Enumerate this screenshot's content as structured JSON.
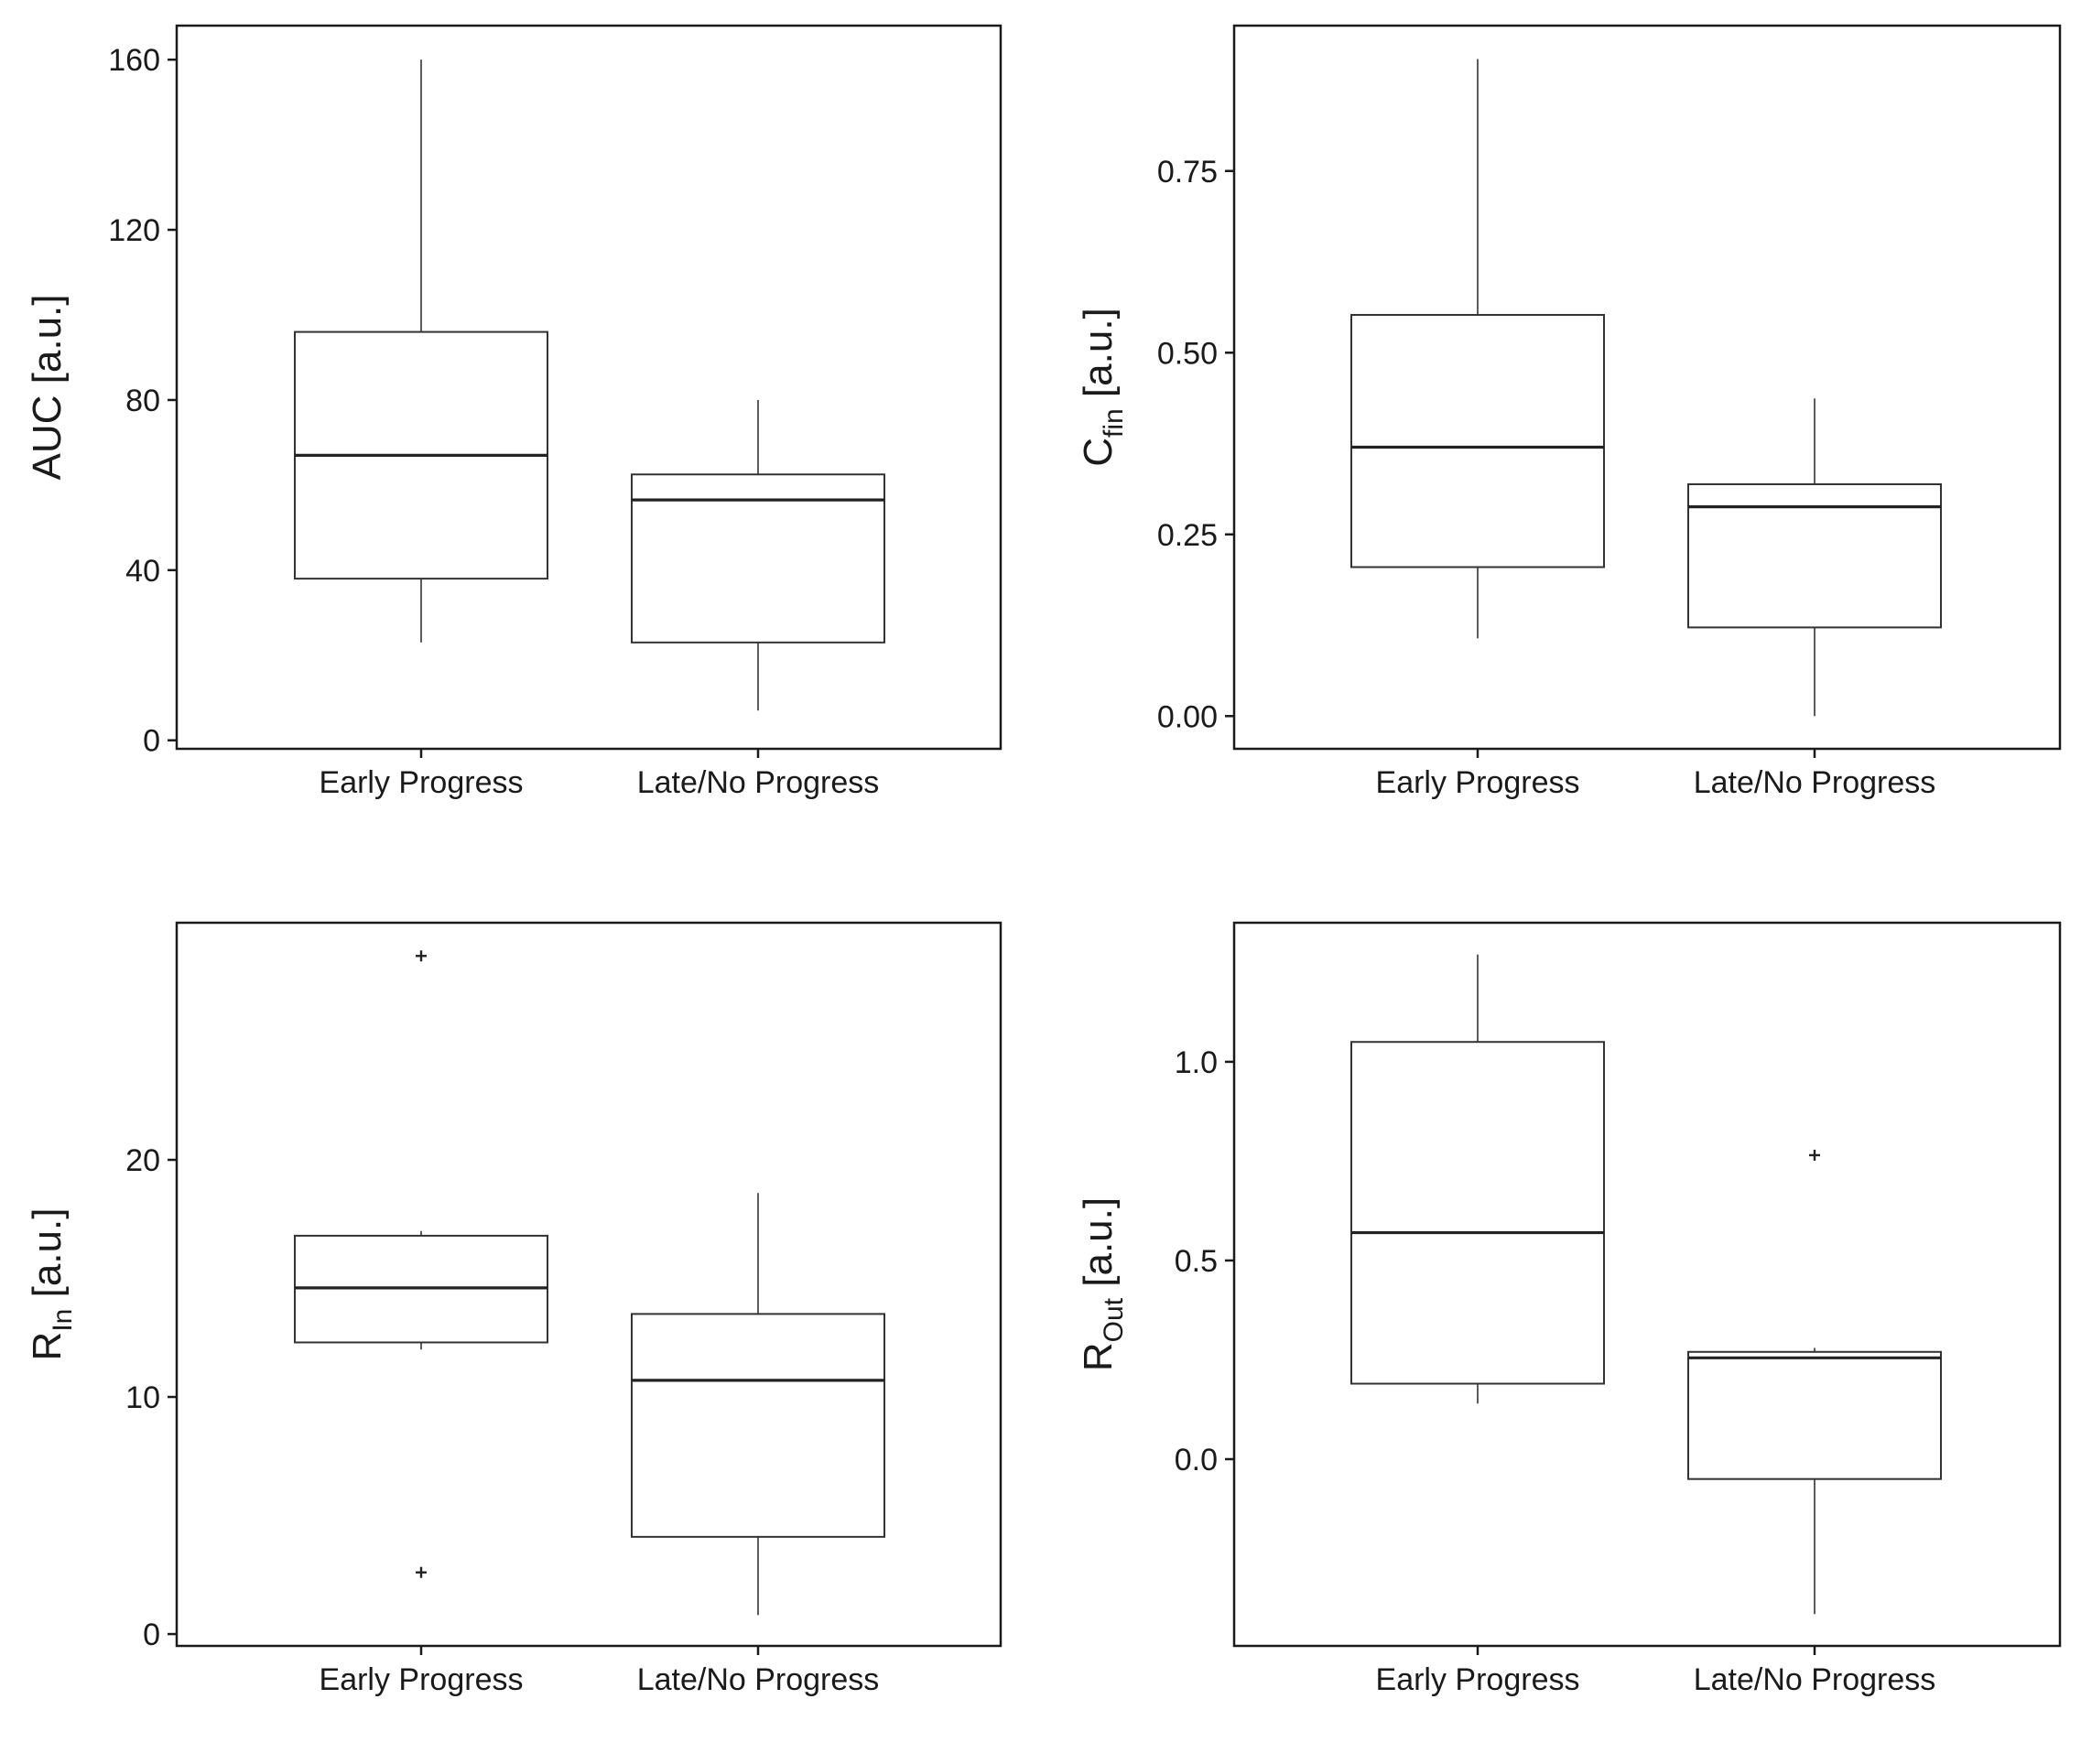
{
  "chart_data": [
    {
      "type": "box",
      "ylabel": {
        "main": "AUC",
        "sub": "",
        "unit": "[a.u.]"
      },
      "ylim": [
        -2,
        168
      ],
      "yticks": [
        "0",
        "40",
        "80",
        "120",
        "160"
      ],
      "categories": [
        "Early Progress",
        "Late/No Progress"
      ],
      "boxes": [
        {
          "whisker_low": 23,
          "q1": 38,
          "median": 67,
          "q3": 96,
          "whisker_high": 160,
          "outliers": []
        },
        {
          "whisker_low": 7,
          "q1": 23,
          "median": 56.5,
          "q3": 62.5,
          "whisker_high": 80,
          "outliers": []
        }
      ]
    },
    {
      "type": "box",
      "ylabel": {
        "main": "C",
        "sub": "fin",
        "unit": "[a.u.]"
      },
      "ylim": [
        -0.045,
        0.95
      ],
      "yticks": [
        "0.00",
        "0.25",
        "0.50",
        "0.75"
      ],
      "categories": [
        "Early Progress",
        "Late/No Progress"
      ],
      "boxes": [
        {
          "whisker_low": 0.107,
          "q1": 0.205,
          "median": 0.37,
          "q3": 0.552,
          "whisker_high": 0.904,
          "outliers": []
        },
        {
          "whisker_low": 0.0,
          "q1": 0.122,
          "median": 0.288,
          "q3": 0.319,
          "whisker_high": 0.437,
          "outliers": []
        }
      ]
    },
    {
      "type": "box",
      "ylabel": {
        "main": "R",
        "sub": "In",
        "unit": "[a.u.]"
      },
      "ylim": [
        -0.5,
        30
      ],
      "yticks": [
        "0",
        "10",
        "20"
      ],
      "categories": [
        "Early Progress",
        "Late/No Progress"
      ],
      "boxes": [
        {
          "whisker_low": 12.0,
          "q1": 12.3,
          "median": 14.6,
          "q3": 16.8,
          "whisker_high": 17.0,
          "outliers": [
            2.6,
            28.6
          ]
        },
        {
          "whisker_low": 0.8,
          "q1": 4.1,
          "median": 10.7,
          "q3": 13.5,
          "whisker_high": 18.6,
          "outliers": []
        }
      ]
    },
    {
      "type": "box",
      "ylabel": {
        "main": "R",
        "sub": "Out",
        "unit": "[a.u.]"
      },
      "ylim": [
        -0.47,
        1.35
      ],
      "yticks": [
        "0.0",
        "0.5",
        "1.0"
      ],
      "categories": [
        "Early Progress",
        "Late/No Progress"
      ],
      "boxes": [
        {
          "whisker_low": 0.14,
          "q1": 0.19,
          "median": 0.57,
          "q3": 1.05,
          "whisker_high": 1.27,
          "outliers": []
        },
        {
          "whisker_low": -0.39,
          "q1": -0.05,
          "median": 0.255,
          "q3": 0.27,
          "whisker_high": 0.28,
          "outliers": [
            0.765
          ]
        }
      ]
    }
  ]
}
